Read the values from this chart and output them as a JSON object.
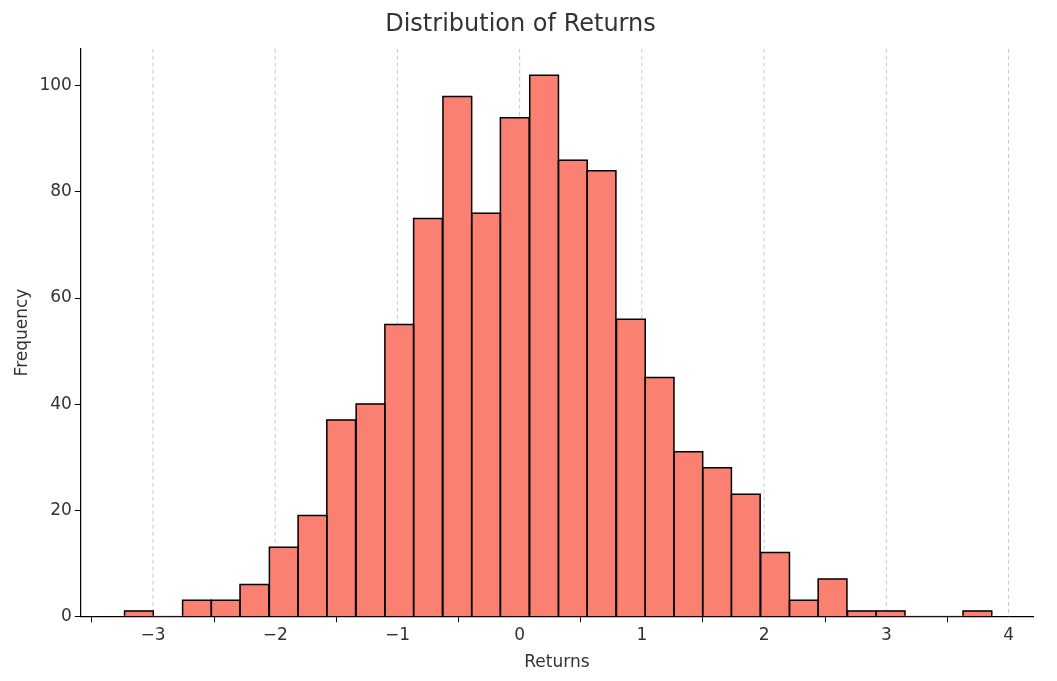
{
  "chart_data": {
    "type": "histogram",
    "title": "Distribution of Returns",
    "xlabel": "Returns",
    "ylabel": "Frequency",
    "color": "#fa8072",
    "bins": [
      -3.23,
      -3.0,
      -2.76,
      -2.52,
      -2.29,
      -2.05,
      -1.81,
      -1.58,
      -1.34,
      -1.1,
      -0.87,
      -0.63,
      -0.39,
      -0.16,
      0.08,
      0.32,
      0.55,
      0.79,
      1.03,
      1.26,
      1.5,
      1.73,
      1.97,
      2.21,
      2.44,
      2.68,
      2.92,
      3.15,
      3.39,
      3.63,
      3.86
    ],
    "values": [
      1,
      0,
      3,
      3,
      6,
      13,
      19,
      37,
      40,
      55,
      75,
      98,
      76,
      94,
      102,
      86,
      84,
      56,
      45,
      31,
      28,
      23,
      12,
      3,
      7,
      1,
      1,
      0,
      0,
      1
    ],
    "xlim": [
      -3.59,
      4.2
    ],
    "ylim": [
      0,
      107
    ],
    "xticks": [
      {
        "value": -3,
        "label": "−3"
      },
      {
        "value": -2,
        "label": "−2"
      },
      {
        "value": -1,
        "label": "−1"
      },
      0,
      1,
      2,
      3,
      4
    ],
    "yticks": [
      0,
      20,
      40,
      60,
      80,
      100
    ],
    "grid": "x"
  }
}
